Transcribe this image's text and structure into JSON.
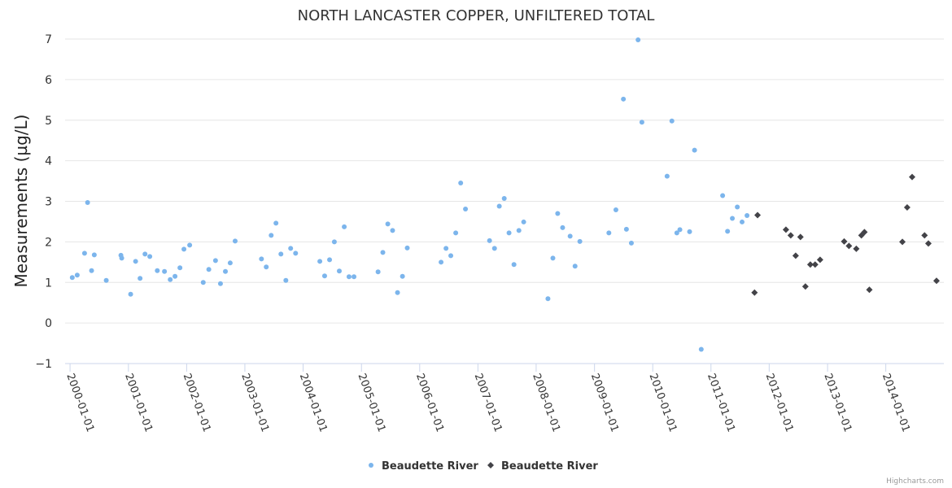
{
  "chart_data": {
    "type": "scatter",
    "title": "NORTH LANCASTER COPPER, UNFILTERED TOTAL",
    "ylabel": "Measurements (µg/L)",
    "xlabel": "",
    "ylim": [
      -1,
      7
    ],
    "yticks": [
      "−1",
      "0",
      "1",
      "2",
      "3",
      "4",
      "5",
      "6",
      "7"
    ],
    "xlim": [
      "1999-12-01",
      "2014-12-31"
    ],
    "xticks": [
      "2000-01-01",
      "2001-01-01",
      "2002-01-01",
      "2003-01-01",
      "2004-01-01",
      "2005-01-01",
      "2006-01-01",
      "2007-01-01",
      "2008-01-01",
      "2009-01-01",
      "2010-01-01",
      "2011-01-01",
      "2012-01-01",
      "2013-01-01",
      "2014-01-01"
    ],
    "grid": true,
    "legend_position": "bottom-center",
    "series": [
      {
        "name": "Beaudette River",
        "marker": "circle",
        "color": "#7cb5ec",
        "points": [
          [
            "2000-01-15",
            1.12
          ],
          [
            "2000-02-15",
            1.18
          ],
          [
            "2000-04-01",
            1.72
          ],
          [
            "2000-04-20",
            2.97
          ],
          [
            "2000-05-15",
            1.29
          ],
          [
            "2000-06-01",
            1.68
          ],
          [
            "2000-08-15",
            1.05
          ],
          [
            "2000-11-15",
            1.67
          ],
          [
            "2000-11-20",
            1.6
          ],
          [
            "2001-01-15",
            0.71
          ],
          [
            "2001-02-15",
            1.52
          ],
          [
            "2001-03-15",
            1.1
          ],
          [
            "2001-04-15",
            1.7
          ],
          [
            "2001-05-15",
            1.64
          ],
          [
            "2001-07-01",
            1.29
          ],
          [
            "2001-08-15",
            1.27
          ],
          [
            "2001-09-20",
            1.07
          ],
          [
            "2001-10-20",
            1.15
          ],
          [
            "2001-11-20",
            1.36
          ],
          [
            "2001-12-15",
            1.82
          ],
          [
            "2002-01-20",
            1.92
          ],
          [
            "2002-04-15",
            1.0
          ],
          [
            "2002-05-20",
            1.32
          ],
          [
            "2002-07-01",
            1.54
          ],
          [
            "2002-08-01",
            0.97
          ],
          [
            "2002-09-01",
            1.27
          ],
          [
            "2002-10-01",
            1.48
          ],
          [
            "2002-11-01",
            2.02
          ],
          [
            "2003-04-15",
            1.58
          ],
          [
            "2003-05-15",
            1.38
          ],
          [
            "2003-06-15",
            2.16
          ],
          [
            "2003-07-15",
            2.46
          ],
          [
            "2003-08-15",
            1.7
          ],
          [
            "2003-09-15",
            1.05
          ],
          [
            "2003-10-15",
            1.84
          ],
          [
            "2003-11-15",
            1.72
          ],
          [
            "2004-04-15",
            1.52
          ],
          [
            "2004-05-15",
            1.16
          ],
          [
            "2004-06-15",
            1.56
          ],
          [
            "2004-07-15",
            2.0
          ],
          [
            "2004-08-15",
            1.28
          ],
          [
            "2004-09-15",
            2.37
          ],
          [
            "2004-10-15",
            1.14
          ],
          [
            "2004-11-15",
            1.14
          ],
          [
            "2005-04-15",
            1.26
          ],
          [
            "2005-05-15",
            1.74
          ],
          [
            "2005-06-15",
            2.44
          ],
          [
            "2005-07-15",
            2.28
          ],
          [
            "2005-08-15",
            0.75
          ],
          [
            "2005-09-15",
            1.15
          ],
          [
            "2005-10-15",
            1.85
          ],
          [
            "2006-05-15",
            1.5
          ],
          [
            "2006-06-15",
            1.84
          ],
          [
            "2006-07-15",
            1.66
          ],
          [
            "2006-08-15",
            2.22
          ],
          [
            "2006-09-15",
            3.45
          ],
          [
            "2006-10-15",
            2.81
          ],
          [
            "2007-03-15",
            2.03
          ],
          [
            "2007-04-15",
            1.84
          ],
          [
            "2007-05-15",
            2.88
          ],
          [
            "2007-06-15",
            3.07
          ],
          [
            "2007-07-15",
            2.22
          ],
          [
            "2007-08-15",
            1.44
          ],
          [
            "2007-09-15",
            2.28
          ],
          [
            "2007-10-15",
            2.49
          ],
          [
            "2008-03-15",
            0.6
          ],
          [
            "2008-04-15",
            1.6
          ],
          [
            "2008-05-15",
            2.7
          ],
          [
            "2008-06-15",
            2.35
          ],
          [
            "2008-08-01",
            2.14
          ],
          [
            "2008-09-01",
            1.4
          ],
          [
            "2008-10-01",
            2.01
          ],
          [
            "2009-04-01",
            2.22
          ],
          [
            "2009-05-15",
            2.79
          ],
          [
            "2009-07-01",
            5.52
          ],
          [
            "2009-07-20",
            2.31
          ],
          [
            "2009-08-20",
            1.97
          ],
          [
            "2009-10-01",
            6.98
          ],
          [
            "2009-10-25",
            4.95
          ],
          [
            "2010-04-01",
            3.62
          ],
          [
            "2010-05-01",
            4.98
          ],
          [
            "2010-06-01",
            2.22
          ],
          [
            "2010-06-20",
            2.3
          ],
          [
            "2010-08-20",
            2.25
          ],
          [
            "2010-09-20",
            4.26
          ],
          [
            "2010-11-01",
            -0.65
          ],
          [
            "2011-03-15",
            3.14
          ],
          [
            "2011-04-15",
            2.26
          ],
          [
            "2011-05-15",
            2.58
          ],
          [
            "2011-06-15",
            2.86
          ],
          [
            "2011-07-15",
            2.49
          ],
          [
            "2011-08-15",
            2.65
          ]
        ]
      },
      {
        "name": "Beaudette River",
        "marker": "diamond",
        "color": "#434348",
        "points": [
          [
            "2011-10-01",
            0.75
          ],
          [
            "2011-10-20",
            2.66
          ],
          [
            "2012-04-15",
            2.3
          ],
          [
            "2012-05-15",
            2.16
          ],
          [
            "2012-06-15",
            1.66
          ],
          [
            "2012-07-15",
            2.12
          ],
          [
            "2012-08-15",
            0.9
          ],
          [
            "2012-09-15",
            1.44
          ],
          [
            "2012-10-15",
            1.44
          ],
          [
            "2012-11-15",
            1.56
          ],
          [
            "2013-04-15",
            2.01
          ],
          [
            "2013-05-15",
            1.9
          ],
          [
            "2013-06-30",
            1.83
          ],
          [
            "2013-08-01",
            2.16
          ],
          [
            "2013-08-20",
            2.24
          ],
          [
            "2013-09-20",
            0.82
          ],
          [
            "2014-04-15",
            2.0
          ],
          [
            "2014-05-15",
            2.85
          ],
          [
            "2014-06-15",
            3.6
          ],
          [
            "2014-09-01",
            2.16
          ],
          [
            "2014-09-25",
            1.96
          ],
          [
            "2014-11-15",
            1.04
          ]
        ]
      }
    ]
  },
  "credits": "Highcharts.com"
}
